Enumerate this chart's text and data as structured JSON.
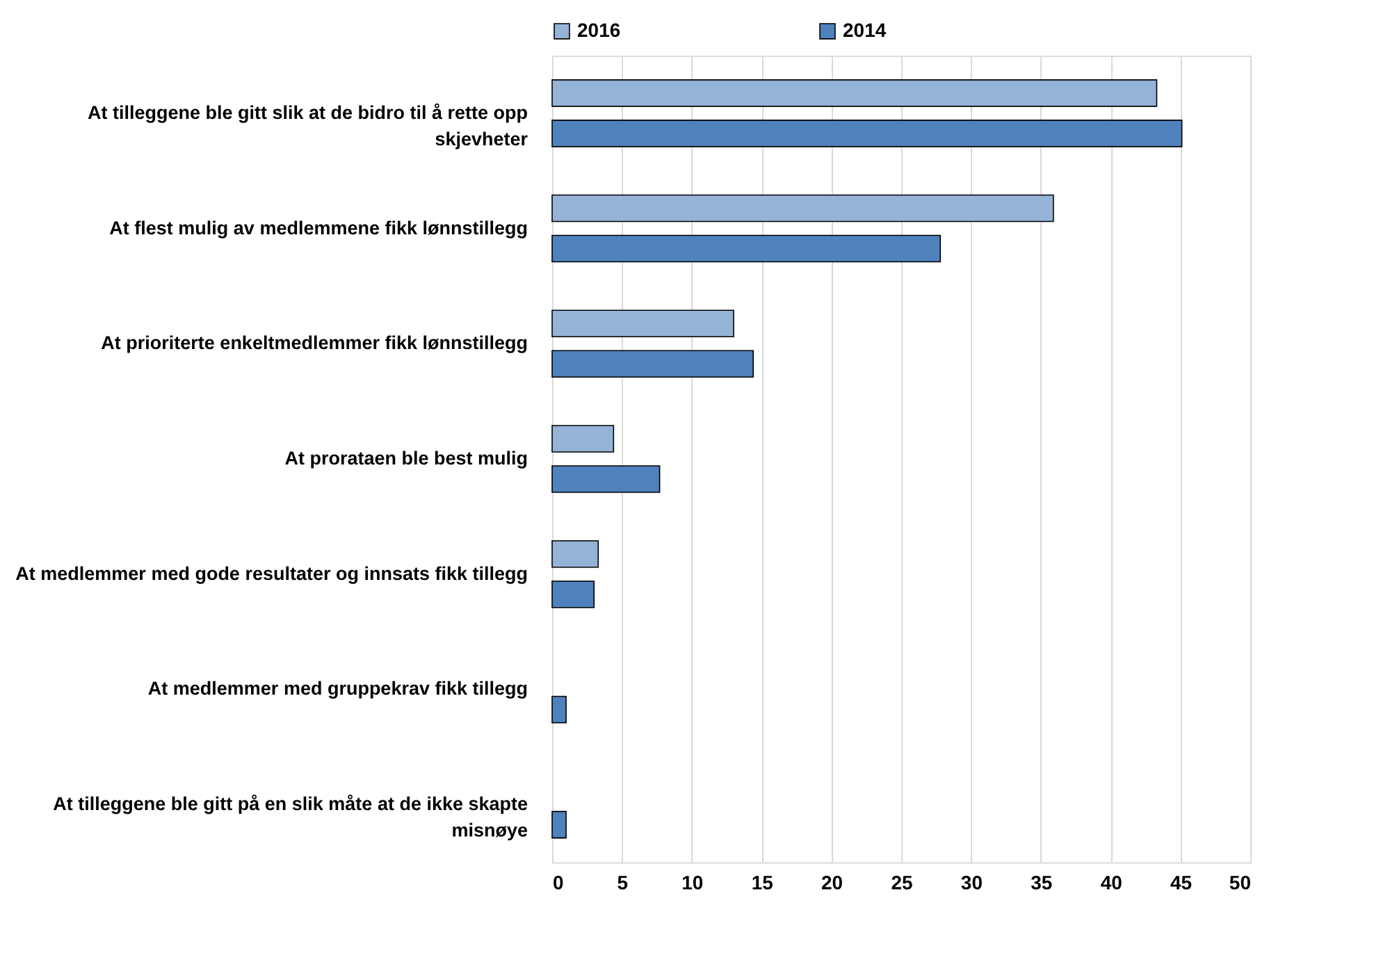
{
  "chart_data": {
    "type": "bar",
    "orientation": "horizontal",
    "categories": [
      "At tilleggene ble gitt slik at de bidro til å rette opp skjevheter",
      "At flest mulig av medlemmene fikk lønnstillegg",
      "At prioriterte enkeltmedlemmer fikk lønnstillegg",
      "At prorataen ble best mulig",
      "At medlemmer med gode resultater og innsats fikk tillegg",
      "At medlemmer med gruppekrav fikk tillegg",
      "At tilleggene ble gitt på en slik måte at de ikke skapte misnøye"
    ],
    "series": [
      {
        "name": "2016",
        "color": "#95b3d7",
        "values": [
          43.3,
          35.9,
          13.0,
          4.4,
          3.3,
          null,
          null
        ]
      },
      {
        "name": "2014",
        "color": "#4f81bd",
        "values": [
          45.1,
          27.8,
          14.4,
          7.7,
          3.0,
          1.0,
          1.0
        ]
      }
    ],
    "xlim": [
      0,
      50
    ],
    "xticks": [
      0,
      5,
      10,
      15,
      20,
      25,
      30,
      35,
      40,
      45,
      50
    ],
    "grid": "x",
    "legend": "top"
  }
}
